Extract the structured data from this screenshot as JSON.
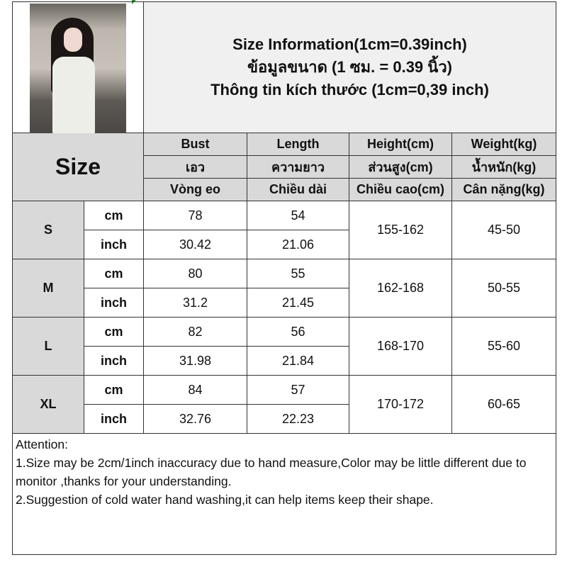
{
  "title_lines": [
    "Size Information(1cm=0.39inch)",
    "ข้อมูลขนาด (1 ซม. = 0.39 นิ้ว)",
    "Thông tin kích thước (1cm=0,39 inch)"
  ],
  "size_label": "Size",
  "headers": [
    [
      "Bust",
      "Length",
      "Height(cm)",
      "Weight(kg)"
    ],
    [
      "เอว",
      "ความยาว",
      "ส่วนสูง(cm)",
      "น้ำหนัก(kg)"
    ],
    [
      "Vòng eo",
      "Chiều dài",
      "Chiều cao(cm)",
      "Cân nặng(kg)"
    ]
  ],
  "rows": [
    {
      "size": "S",
      "cm": {
        "unit": "cm",
        "bust": "78",
        "length": "54"
      },
      "inch": {
        "unit": "inch",
        "bust": "30.42",
        "length": "21.06"
      },
      "height": "155-162",
      "weight": "45-50"
    },
    {
      "size": "M",
      "cm": {
        "unit": "cm",
        "bust": "80",
        "length": "55"
      },
      "inch": {
        "unit": "inch",
        "bust": "31.2",
        "length": "21.45"
      },
      "height": "162-168",
      "weight": "50-55"
    },
    {
      "size": "L",
      "cm": {
        "unit": "cm",
        "bust": "82",
        "length": "56"
      },
      "inch": {
        "unit": "inch",
        "bust": "31.98",
        "length": "21.84"
      },
      "height": "168-170",
      "weight": "55-60"
    },
    {
      "size": "XL",
      "cm": {
        "unit": "cm",
        "bust": "84",
        "length": "57"
      },
      "inch": {
        "unit": "inch",
        "bust": "32.76",
        "length": "22.23"
      },
      "height": "170-172",
      "weight": "60-65"
    }
  ],
  "attention": {
    "heading": "Attention:",
    "line1": "1.Size may be 2cm/1inch inaccuracy due to hand measure,Color may be little different due to monitor ,thanks for your understanding.",
    "line2": "2.Suggestion of cold water hand washing,it can help items keep their shape."
  }
}
